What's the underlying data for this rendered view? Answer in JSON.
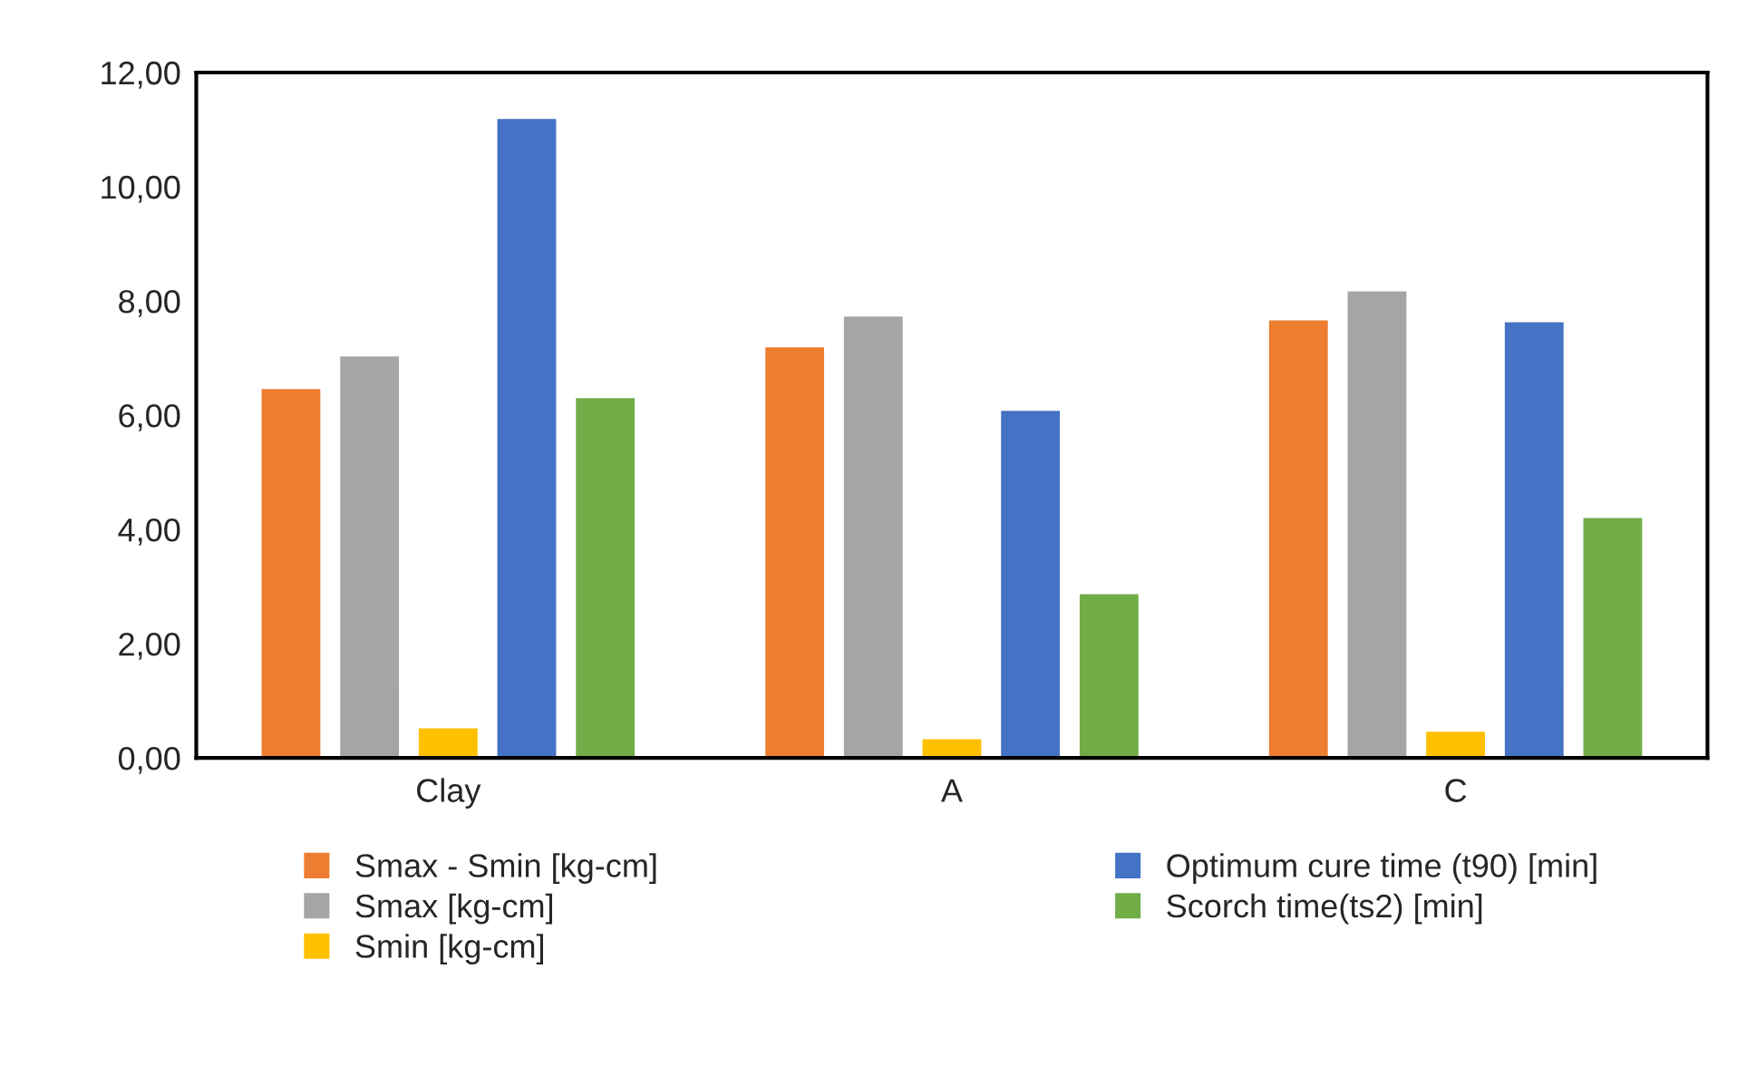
{
  "chart_data": {
    "type": "bar",
    "categories": [
      "Clay",
      "A",
      "C"
    ],
    "series": [
      {
        "name": "Smax - Smin [kg-cm]",
        "color": "#ed7d31",
        "values": [
          6.48,
          7.21,
          7.68
        ]
      },
      {
        "name": "Smax [kg-cm]",
        "color": "#a5a5a5",
        "values": [
          7.05,
          7.75,
          8.19
        ]
      },
      {
        "name": "Smin [kg-cm]",
        "color": "#ffc000",
        "values": [
          0.54,
          0.35,
          0.48
        ]
      },
      {
        "name": "Optimum cure time (t90) [min]",
        "color": "#4472c4",
        "values": [
          11.21,
          6.1,
          7.65
        ]
      },
      {
        "name": "Scorch time(ts2) [min]",
        "color": "#70ad47",
        "values": [
          6.32,
          2.89,
          4.22
        ]
      }
    ],
    "ylim": [
      0,
      12
    ],
    "yticks": [
      {
        "value": 0,
        "label": "0,00"
      },
      {
        "value": 2,
        "label": "2,00"
      },
      {
        "value": 4,
        "label": "4,00"
      },
      {
        "value": 6,
        "label": "6,00"
      },
      {
        "value": 8,
        "label": "8,00"
      },
      {
        "value": 10,
        "label": "10,00"
      },
      {
        "value": 12,
        "label": "12,00"
      }
    ],
    "grid": false,
    "legend": "bottom"
  }
}
